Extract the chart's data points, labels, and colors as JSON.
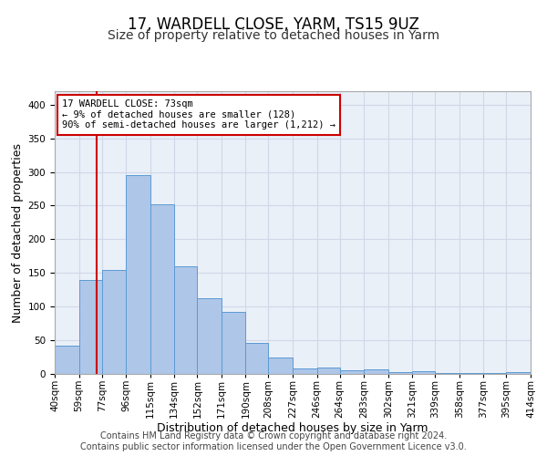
{
  "title": "17, WARDELL CLOSE, YARM, TS15 9UZ",
  "subtitle": "Size of property relative to detached houses in Yarm",
  "xlabel": "Distribution of detached houses by size in Yarm",
  "ylabel": "Number of detached properties",
  "bin_labels": [
    "40sqm",
    "59sqm",
    "77sqm",
    "96sqm",
    "115sqm",
    "134sqm",
    "152sqm",
    "171sqm",
    "190sqm",
    "208sqm",
    "227sqm",
    "246sqm",
    "264sqm",
    "283sqm",
    "302sqm",
    "321sqm",
    "339sqm",
    "358sqm",
    "377sqm",
    "395sqm",
    "414sqm"
  ],
  "bar_heights": [
    42,
    140,
    155,
    295,
    252,
    160,
    112,
    92,
    46,
    24,
    8,
    10,
    5,
    7,
    3,
    4,
    2,
    2,
    2,
    3
  ],
  "bar_color": "#aec6e8",
  "bar_edge_color": "#5b9bd5",
  "property_line_x": 73,
  "property_line_label": "17 WARDELL CLOSE: 73sqm",
  "annotation_line1": "← 9% of detached houses are smaller (128)",
  "annotation_line2": "90% of semi-detached houses are larger (1,212) →",
  "annotation_box_color": "#ffffff",
  "annotation_box_edge": "#cc0000",
  "vline_color": "#cc0000",
  "ylim": [
    0,
    420
  ],
  "yticks": [
    0,
    50,
    100,
    150,
    200,
    250,
    300,
    350,
    400
  ],
  "grid_color": "#d0d8e8",
  "background_color": "#eaf0f8",
  "footer": "Contains HM Land Registry data © Crown copyright and database right 2024.\nContains public sector information licensed under the Open Government Licence v3.0.",
  "title_fontsize": 12,
  "subtitle_fontsize": 10,
  "axis_label_fontsize": 9,
  "tick_fontsize": 7.5,
  "footer_fontsize": 7
}
